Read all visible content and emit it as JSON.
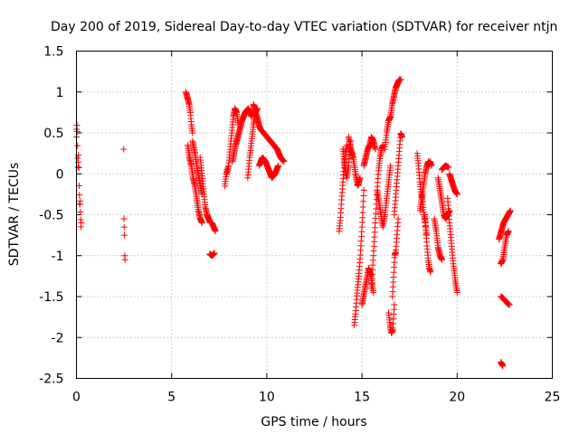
{
  "chart_data": {
    "type": "scatter",
    "title": "Day 200 of 2019, Sidereal Day-to-day VTEC variation (SDTVAR) for receiver ntjn",
    "xlabel": "GPS time / hours",
    "ylabel": "SDTVAR / TECUs",
    "xlim": [
      0,
      25
    ],
    "ylim": [
      -2.5,
      1.5
    ],
    "xticks": [
      0,
      5,
      10,
      15,
      20,
      25
    ],
    "yticks": [
      -2.5,
      -2,
      -1.5,
      -1,
      -0.5,
      0,
      0.5,
      1,
      1.5
    ],
    "xtick_labels": [
      "0",
      "5",
      "10",
      "15",
      "20",
      "25"
    ],
    "ytick_labels": [
      "-2.5",
      "-2",
      "-1.5",
      "-1",
      "-0.5",
      "0",
      "0.5",
      "1",
      "1.5"
    ],
    "grid": true,
    "marker": "+",
    "color": "#ff0000",
    "segments": [
      {
        "x0": 0.0,
        "x1": 0.25,
        "y": [
          0.45,
          0.55,
          0.6,
          0.5,
          0.3,
          0.15,
          0.05,
          0.2,
          0.25,
          -0.1,
          -0.2,
          -0.35,
          -0.4,
          -0.3,
          -0.45,
          -0.55,
          -0.65,
          -0.6
        ]
      },
      {
        "x0": 2.48,
        "x1": 2.55,
        "y": [
          0.3,
          -0.55,
          -0.65,
          -0.75,
          -1.0,
          -1.05
        ]
      },
      {
        "x0": 5.75,
        "x1": 6.1,
        "y": [
          1.0,
          0.95,
          0.9,
          0.85,
          0.75,
          0.6,
          0.5
        ]
      },
      {
        "x0": 5.85,
        "x1": 6.6,
        "y": [
          0.35,
          0.2,
          0.1,
          -0.05,
          -0.15,
          -0.3,
          -0.45,
          -0.55,
          -0.6
        ]
      },
      {
        "x0": 6.1,
        "x1": 6.6,
        "y": [
          0.4,
          0.25,
          0.05,
          -0.1,
          -0.25
        ]
      },
      {
        "x0": 6.5,
        "x1": 7.3,
        "y": [
          0.2,
          0.0,
          -0.2,
          -0.4,
          -0.5,
          -0.55,
          -0.6,
          -0.6,
          -0.65,
          -0.7
        ]
      },
      {
        "x0": 7.0,
        "x1": 7.25,
        "y": [
          -0.98,
          -1.0,
          -0.97
        ]
      },
      {
        "x0": 7.8,
        "x1": 7.9,
        "y": [
          -0.15,
          -0.05,
          0.05
        ]
      },
      {
        "x0": 7.9,
        "x1": 8.5,
        "y": [
          0.0,
          0.1,
          0.3,
          0.5,
          0.7,
          0.8,
          0.75,
          0.6
        ]
      },
      {
        "x0": 8.2,
        "x1": 9.2,
        "y": [
          0.15,
          0.35,
          0.5,
          0.65,
          0.75,
          0.8,
          0.7
        ]
      },
      {
        "x0": 9.0,
        "x1": 9.5,
        "y": [
          -0.05,
          0.2,
          0.4,
          0.6,
          0.75,
          0.8
        ]
      },
      {
        "x0": 9.3,
        "x1": 10.9,
        "y": [
          0.85,
          0.7,
          0.55,
          0.5,
          0.45,
          0.4,
          0.35,
          0.3,
          0.2,
          0.15
        ]
      },
      {
        "x0": 9.6,
        "x1": 10.6,
        "y": [
          0.1,
          0.2,
          0.15,
          0.05,
          -0.05,
          0.0,
          0.1
        ]
      },
      {
        "x0": 13.8,
        "x1": 14.2,
        "y": [
          -0.7,
          -0.55,
          -0.3,
          -0.1,
          0.1,
          0.25,
          0.35
        ]
      },
      {
        "x0": 14.0,
        "x1": 14.4,
        "y": [
          0.3,
          0.1,
          -0.05,
          0.1,
          0.4
        ]
      },
      {
        "x0": 14.3,
        "x1": 14.9,
        "y": [
          0.45,
          0.3,
          0.2,
          0.0,
          -0.15,
          -0.05
        ]
      },
      {
        "x0": 14.6,
        "x1": 15.1,
        "y": [
          -1.85,
          -1.7,
          -1.5,
          -1.35,
          -1.2,
          -1.0,
          -0.75,
          -0.5,
          -0.2
        ]
      },
      {
        "x0": 15.0,
        "x1": 15.6,
        "y": [
          -1.6,
          -1.45,
          -1.3,
          -1.15,
          -1.25,
          -1.45
        ]
      },
      {
        "x0": 15.1,
        "x1": 15.7,
        "y": [
          0.1,
          0.2,
          0.3,
          0.35,
          0.45,
          0.4,
          0.3
        ]
      },
      {
        "x0": 15.5,
        "x1": 16.1,
        "y": [
          -1.4,
          -1.1,
          -0.8,
          -0.5,
          -0.2,
          0.05,
          0.2,
          0.3,
          0.35
        ]
      },
      {
        "x0": 15.8,
        "x1": 16.5,
        "y": [
          -0.2,
          -0.35,
          -0.5,
          -0.65,
          -0.5,
          -0.3,
          -0.1,
          0.1
        ]
      },
      {
        "x0": 16.4,
        "x1": 16.7,
        "y": [
          -1.7,
          -1.85,
          -1.95,
          -1.9,
          -1.6
        ]
      },
      {
        "x0": 16.2,
        "x1": 16.5,
        "y": [
          0.3,
          0.5,
          0.65,
          0.7
        ]
      },
      {
        "x0": 16.5,
        "x1": 17.05,
        "y": [
          0.7,
          0.85,
          0.95,
          1.05,
          1.1,
          1.15,
          1.15
        ]
      },
      {
        "x0": 16.6,
        "x1": 16.9,
        "y": [
          -1.5,
          -1.25,
          -1.0,
          -0.95,
          -0.75,
          -0.55
        ]
      },
      {
        "x0": 16.7,
        "x1": 17.1,
        "y": [
          -0.5,
          -0.3,
          -0.1,
          0.1,
          0.3,
          0.5,
          0.45
        ]
      },
      {
        "x0": 17.9,
        "x1": 18.4,
        "y": [
          0.25,
          0.1,
          -0.1,
          -0.25,
          -0.35,
          -0.5,
          -0.6,
          -0.75
        ]
      },
      {
        "x0": 18.05,
        "x1": 18.5,
        "y": [
          -0.45,
          -0.3,
          -0.15,
          0.0,
          0.1,
          0.15
        ]
      },
      {
        "x0": 18.3,
        "x1": 18.6,
        "y": [
          -0.5,
          -0.7,
          -0.9,
          -1.05,
          -1.15,
          -1.2
        ]
      },
      {
        "x0": 18.5,
        "x1": 18.65,
        "y": [
          0.1,
          0.15,
          0.1
        ]
      },
      {
        "x0": 18.8,
        "x1": 19.2,
        "y": [
          -0.55,
          -0.7,
          -0.9,
          -1.0,
          -1.05
        ]
      },
      {
        "x0": 19.2,
        "x1": 19.55,
        "y": [
          0.05,
          0.1,
          0.08
        ]
      },
      {
        "x0": 19.0,
        "x1": 19.6,
        "y": [
          -0.05,
          -0.2,
          -0.35,
          -0.5,
          -0.55,
          -0.5,
          -0.45
        ]
      },
      {
        "x0": 19.5,
        "x1": 20.0,
        "y": [
          -0.3,
          -0.6,
          -0.85,
          -1.1,
          -1.3,
          -1.45
        ]
      },
      {
        "x0": 19.6,
        "x1": 20.0,
        "y": [
          0.0,
          -0.1,
          -0.2,
          -0.25
        ]
      },
      {
        "x0": 22.3,
        "x1": 22.4,
        "y": [
          -2.3,
          -2.35
        ]
      },
      {
        "x0": 22.2,
        "x1": 22.8,
        "y": [
          -0.8,
          -0.7,
          -0.6,
          -0.55,
          -0.5,
          -0.45
        ]
      },
      {
        "x0": 22.3,
        "x1": 22.7,
        "y": [
          -1.1,
          -1.05,
          -0.9,
          -0.75,
          -0.7
        ]
      },
      {
        "x0": 22.3,
        "x1": 22.75,
        "y": [
          -1.5,
          -1.52,
          -1.55,
          -1.58,
          -1.6
        ]
      }
    ]
  }
}
